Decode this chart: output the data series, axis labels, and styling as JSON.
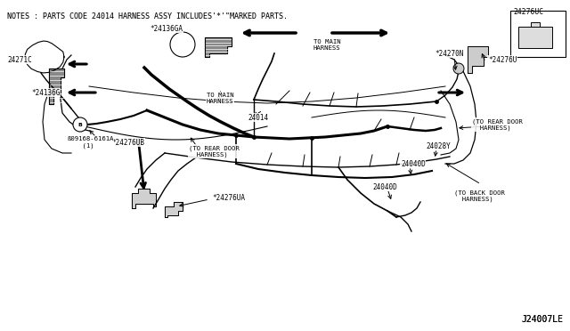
{
  "bg_color": "#ffffff",
  "line_color": "#000000",
  "notes_text": "NOTES : PARTS CODE 24014 HARNESS ASSY INCLUDES'*'\"MARKED PARTS.",
  "diagram_id": "J24007LE",
  "top_right_label": "24276UC",
  "font_size_notes": 6.0,
  "font_size_labels": 5.8,
  "font_size_id": 7.0
}
